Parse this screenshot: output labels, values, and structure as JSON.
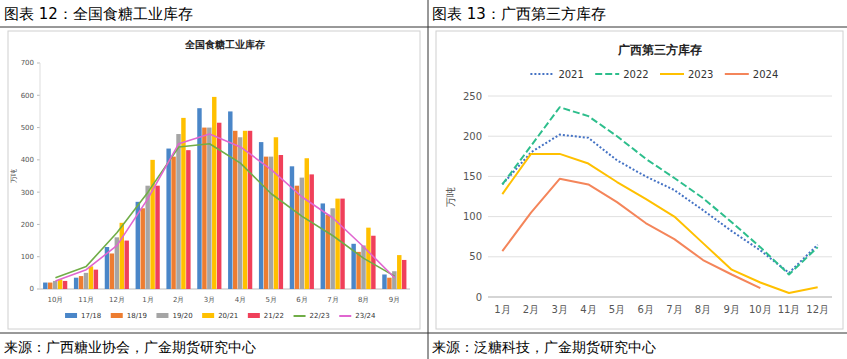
{
  "figures": [
    {
      "caption": "图表 12：全国食糖工业库存",
      "source": "来源：广西糖业协会，广金期货研究中心"
    },
    {
      "caption": "图表 13：广西第三方库存",
      "source": "来源：泛糖科技，广金期货研究中心"
    }
  ],
  "chart_data": [
    {
      "type": "bar",
      "title": "全国食糖工业库存",
      "y_label": "万吨",
      "categories": [
        "10月",
        "11月",
        "12月",
        "1月",
        "2月",
        "3月",
        "4月",
        "5月",
        "6月",
        "7月",
        "8月",
        "9月"
      ],
      "series": [
        {
          "name": "17/18",
          "color": "#4a86c8",
          "type": "bar",
          "values": [
            20,
            35,
            130,
            270,
            435,
            560,
            550,
            455,
            380,
            265,
            140,
            45
          ]
        },
        {
          "name": "18/19",
          "color": "#ed7d31",
          "type": "bar",
          "values": [
            20,
            40,
            110,
            250,
            410,
            500,
            490,
            410,
            320,
            230,
            115,
            35
          ]
        },
        {
          "name": "19/20",
          "color": "#a5a5a5",
          "type": "bar",
          "values": [
            25,
            50,
            160,
            320,
            480,
            500,
            470,
            410,
            345,
            250,
            135,
            55
          ]
        },
        {
          "name": "20/21",
          "color": "#ffc000",
          "type": "bar",
          "values": [
            30,
            70,
            205,
            400,
            530,
            595,
            490,
            470,
            405,
            280,
            190,
            105
          ]
        },
        {
          "name": "21/22",
          "color": "#f0405a",
          "type": "bar",
          "values": [
            25,
            60,
            150,
            320,
            430,
            515,
            490,
            415,
            355,
            280,
            165,
            90
          ]
        },
        {
          "name": "22/23",
          "color": "#70ad47",
          "type": "line",
          "values": [
            35,
            70,
            175,
            300,
            440,
            450,
            390,
            295,
            225,
            165,
            95,
            40
          ]
        },
        {
          "name": "23/24",
          "color": "#e066d0",
          "type": "line",
          "values": [
            25,
            60,
            135,
            280,
            450,
            480,
            440,
            370,
            285,
            220,
            130,
            35
          ]
        }
      ],
      "ylim": [
        0,
        700
      ],
      "yticks": [
        0,
        100,
        200,
        300,
        400,
        500,
        600,
        700
      ],
      "grid": false,
      "legend": "bottom"
    },
    {
      "type": "line",
      "title": "广西第三方库存",
      "y_label": "万吨",
      "categories": [
        "1月",
        "2月",
        "3月",
        "4月",
        "5月",
        "6月",
        "7月",
        "8月",
        "9月",
        "10月",
        "11月",
        "12月"
      ],
      "series": [
        {
          "name": "2021",
          "color": "#4472c4",
          "line_style": "dotted",
          "values": [
            140,
            180,
            202,
            198,
            170,
            150,
            133,
            108,
            82,
            58,
            30,
            65
          ]
        },
        {
          "name": "2022",
          "color": "#2dbe8c",
          "line_style": "dashed",
          "values": [
            140,
            188,
            236,
            225,
            200,
            172,
            148,
            123,
            93,
            62,
            28,
            62
          ]
        },
        {
          "name": "2023",
          "color": "#ffc000",
          "line_style": "solid",
          "values": [
            128,
            178,
            178,
            166,
            143,
            122,
            100,
            67,
            34,
            18,
            5,
            12
          ]
        },
        {
          "name": "2024",
          "color": "#f4855a",
          "line_style": "solid",
          "values": [
            57,
            105,
            147,
            140,
            118,
            92,
            72,
            46,
            28,
            11,
            null,
            null
          ]
        }
      ],
      "ylim": [
        0,
        250
      ],
      "yticks": [
        0,
        50,
        100,
        150,
        200,
        250
      ],
      "grid": true,
      "legend": "top"
    }
  ]
}
